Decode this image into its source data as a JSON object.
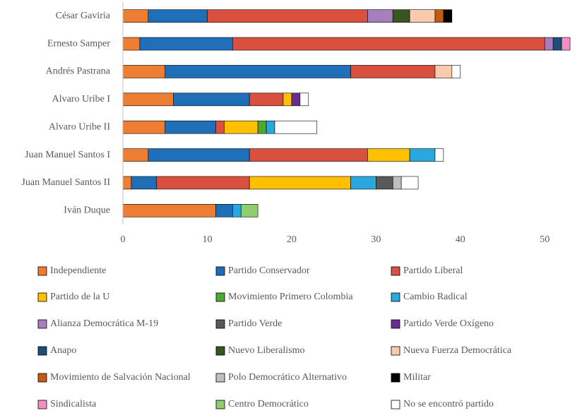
{
  "chart_data": {
    "type": "bar",
    "orientation": "horizontal",
    "stacked": true,
    "grid": false,
    "categories": [
      "César Gaviria",
      "Ernesto Samper",
      "Andrés Pastrana",
      "Alvaro Uribe I",
      "Alvaro Uribe II",
      "Juan Manuel Santos I",
      "Juan Manuel Santos II",
      "Iván Duque"
    ],
    "xlim": [
      0,
      54
    ],
    "xticks": [
      0,
      10,
      20,
      30,
      40,
      50
    ],
    "series": [
      {
        "name": "Independiente",
        "color": "#ED7D31",
        "values": [
          3,
          2,
          5,
          6,
          5,
          3,
          1,
          11
        ]
      },
      {
        "name": "Partido Conservador",
        "color": "#1F6FB8",
        "values": [
          7,
          11,
          22,
          9,
          6,
          12,
          3,
          2
        ]
      },
      {
        "name": "Partido Liberal",
        "color": "#D9503F",
        "values": [
          19,
          37,
          10,
          4,
          1,
          14,
          11,
          0
        ]
      },
      {
        "name": "Partido de la U",
        "color": "#FFC000",
        "values": [
          0,
          0,
          0,
          1,
          4,
          5,
          12,
          0
        ]
      },
      {
        "name": "Movimiento Primero Colombia",
        "color": "#4EA72E",
        "values": [
          0,
          0,
          0,
          0,
          1,
          0,
          0,
          0
        ]
      },
      {
        "name": "Cambio Radical",
        "color": "#29A8E0",
        "values": [
          0,
          0,
          0,
          0,
          1,
          3,
          3,
          1
        ]
      },
      {
        "name": "Alianza Democrática M-19",
        "color": "#A67DBD",
        "values": [
          3,
          1,
          0,
          0,
          0,
          0,
          0,
          0
        ]
      },
      {
        "name": "Partido Verde",
        "color": "#595959",
        "values": [
          0,
          0,
          0,
          0,
          0,
          0,
          2,
          0
        ]
      },
      {
        "name": "Partido Verde Oxígeno",
        "color": "#6A2C91",
        "values": [
          0,
          0,
          0,
          1,
          0,
          0,
          0,
          0
        ]
      },
      {
        "name": "Anapo",
        "color": "#1F4E79",
        "values": [
          0,
          1,
          0,
          0,
          0,
          0,
          0,
          0
        ]
      },
      {
        "name": "Nuevo Liberalismo",
        "color": "#375623",
        "values": [
          2,
          0,
          0,
          0,
          0,
          0,
          0,
          0
        ]
      },
      {
        "name": "Nueva Fuerza Democrática",
        "color": "#F8CBAD",
        "values": [
          3,
          0,
          2,
          0,
          0,
          0,
          0,
          0
        ]
      },
      {
        "name": "Movimiento de Salvación Nacional",
        "color": "#C55A11",
        "values": [
          1,
          0,
          0,
          0,
          0,
          0,
          0,
          0
        ]
      },
      {
        "name": "Polo Democrático Alternativo",
        "color": "#BFBFBF",
        "values": [
          0,
          0,
          0,
          0,
          0,
          0,
          1,
          0
        ]
      },
      {
        "name": "Militar",
        "color": "#000000",
        "values": [
          1,
          0,
          0,
          0,
          0,
          0,
          0,
          0
        ]
      },
      {
        "name": "Sindicalista",
        "color": "#F48FC1",
        "values": [
          0,
          1,
          0,
          0,
          0,
          0,
          0,
          0
        ]
      },
      {
        "name": "Centro Democrático",
        "color": "#8FCB6F",
        "values": [
          0,
          0,
          0,
          0,
          0,
          0,
          0,
          2
        ]
      },
      {
        "name": "No se encontró partido",
        "color": "#FFFFFF",
        "values": [
          0,
          0,
          1,
          1,
          5,
          1,
          2,
          0
        ]
      }
    ]
  }
}
